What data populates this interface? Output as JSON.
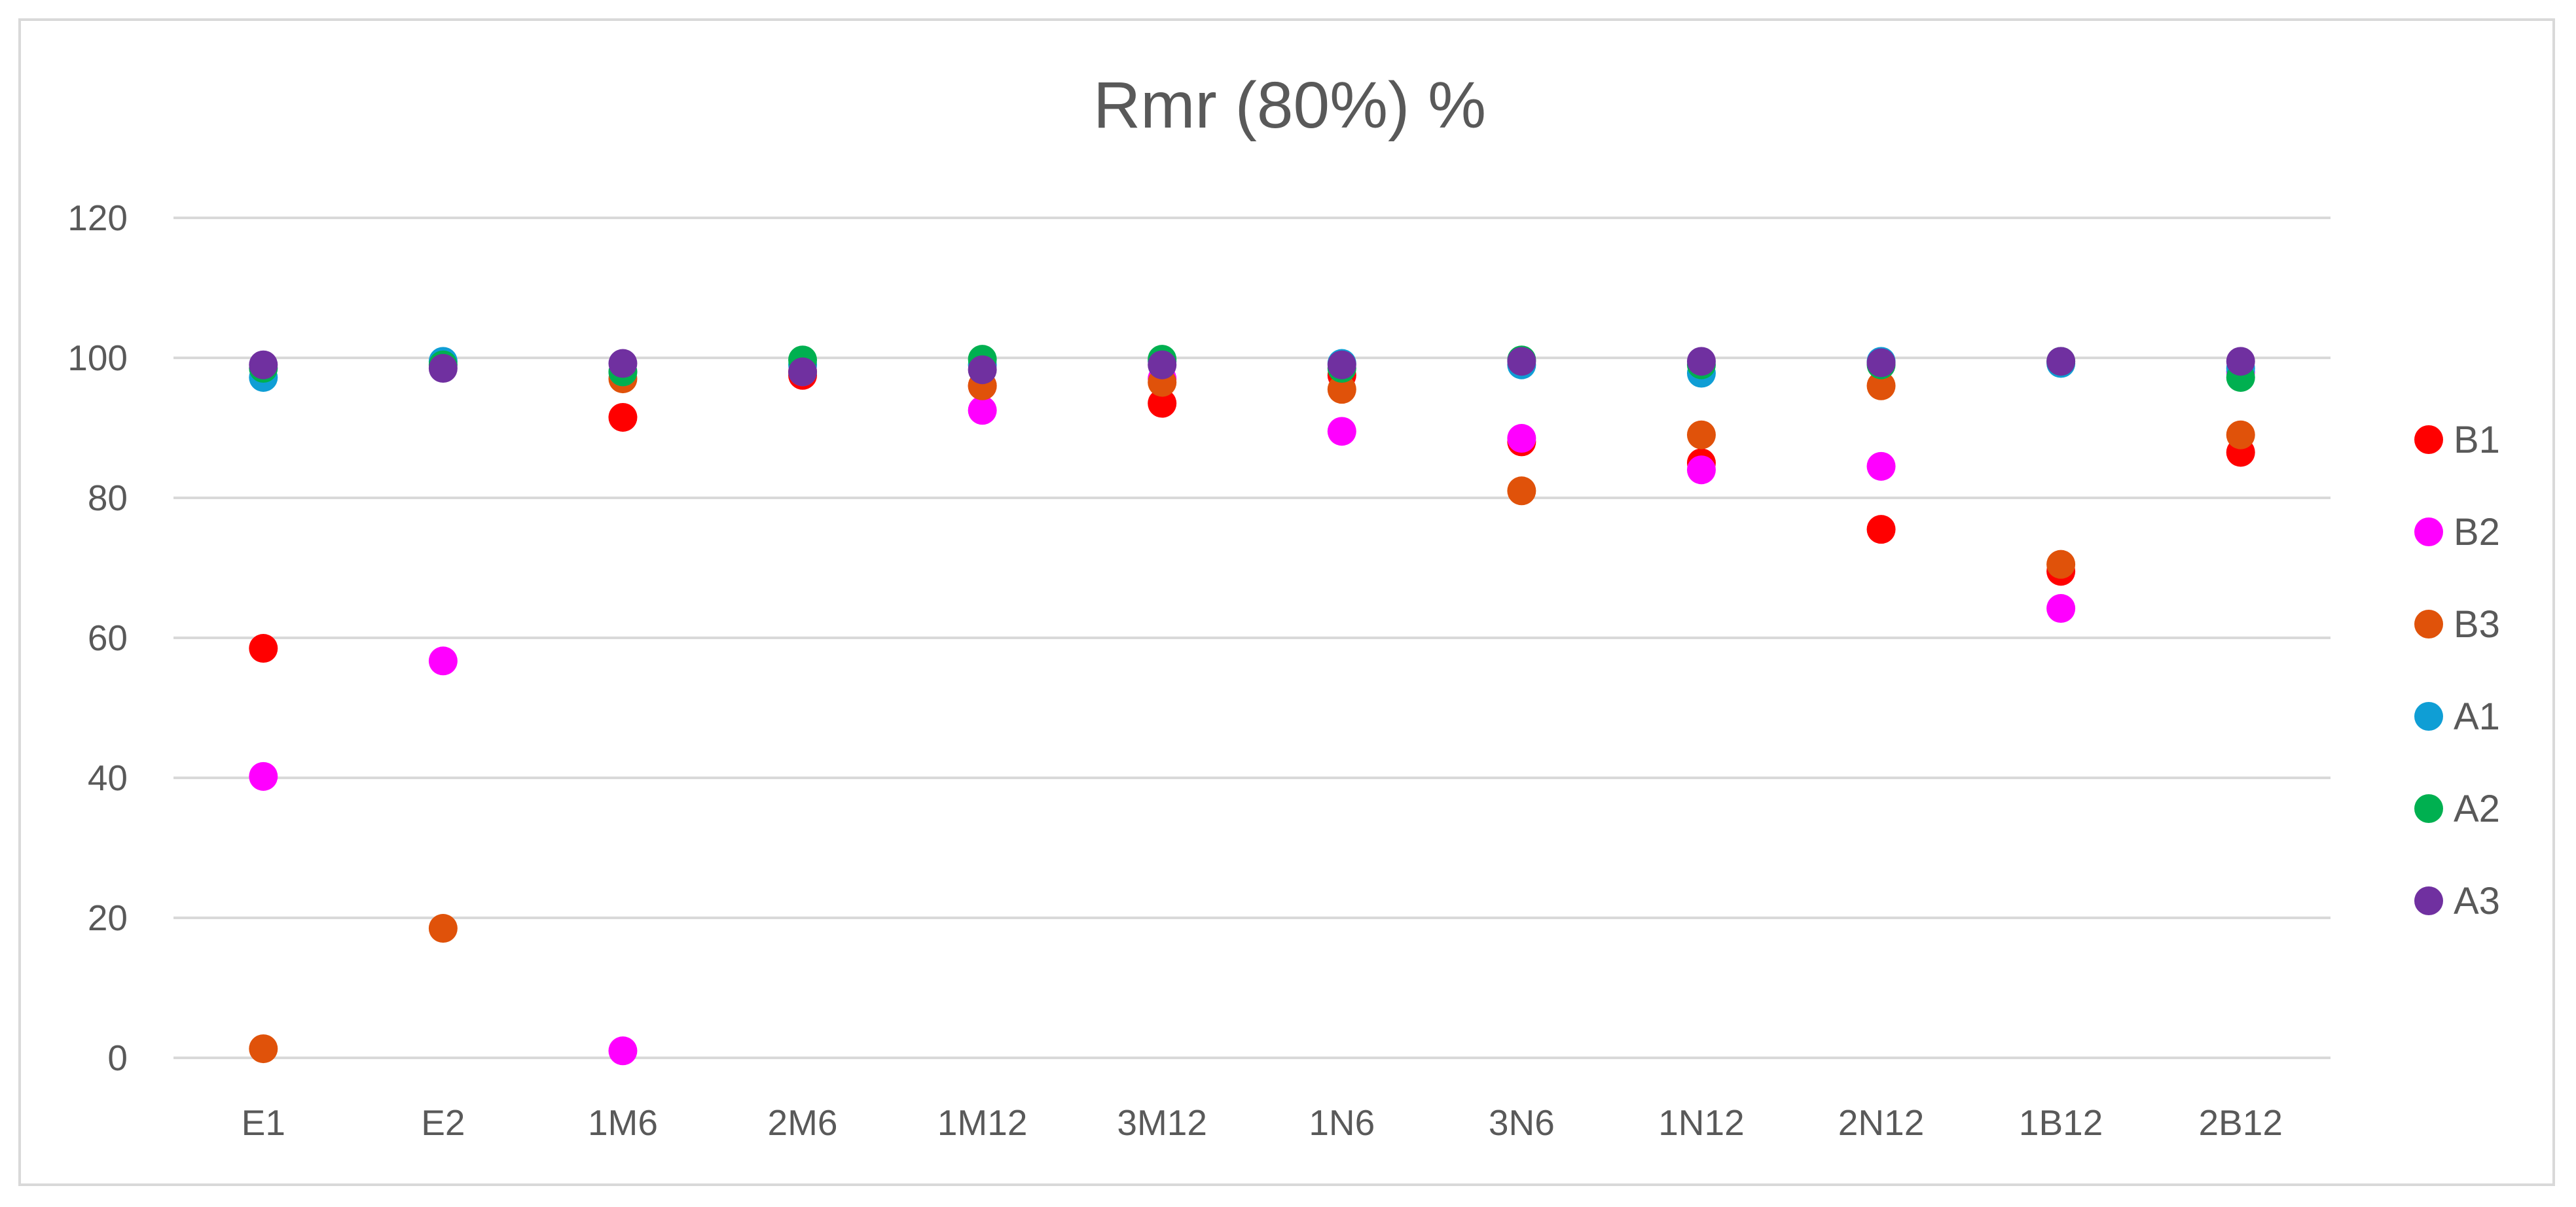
{
  "chart_data": {
    "type": "scatter",
    "title": "Rmr (80%)  %",
    "xlabel": "",
    "ylabel": "",
    "ylim": [
      0,
      120
    ],
    "yticks": [
      "0",
      "20",
      "40",
      "60",
      "80",
      "100",
      "120"
    ],
    "categories": [
      "E1",
      "E2",
      "1M6",
      "2M6",
      "1M12",
      "3M12",
      "1N6",
      "3N6",
      "1N12",
      "2N12",
      "1B12",
      "2B12"
    ],
    "grid": true,
    "legend_position": "right",
    "series": [
      {
        "name": "B1",
        "color": "#ff0000",
        "values": [
          58.5,
          null,
          91.5,
          97.5,
          96,
          93.5,
          97.5,
          88,
          85,
          75.5,
          69.5,
          86.5
        ]
      },
      {
        "name": "B2",
        "color": "#ff00ff",
        "values": [
          40.2,
          56.7,
          1,
          98,
          92.5,
          97,
          89.5,
          88.5,
          84,
          84.5,
          64.2,
          98
        ]
      },
      {
        "name": "B3",
        "color": "#e0520a",
        "values": [
          1.3,
          18.5,
          97,
          98,
          96,
          96.5,
          95.5,
          81,
          89,
          96,
          70.5,
          89
        ]
      },
      {
        "name": "A1",
        "color": "#0f9ed5",
        "values": [
          97.2,
          99.5,
          98,
          99,
          99,
          99.5,
          99.2,
          99,
          97.8,
          99.5,
          99.2,
          98.5
        ]
      },
      {
        "name": "A2",
        "color": "#00b050",
        "values": [
          98.5,
          99,
          98,
          99.7,
          99.8,
          99.8,
          98.5,
          99.7,
          99,
          99,
          99.5,
          97.2
        ]
      },
      {
        "name": "A3",
        "color": "#7030a0",
        "values": [
          99,
          98.5,
          99.2,
          98,
          98.3,
          99,
          99,
          99.5,
          99.5,
          99.3,
          99.5,
          99.5
        ]
      }
    ]
  }
}
